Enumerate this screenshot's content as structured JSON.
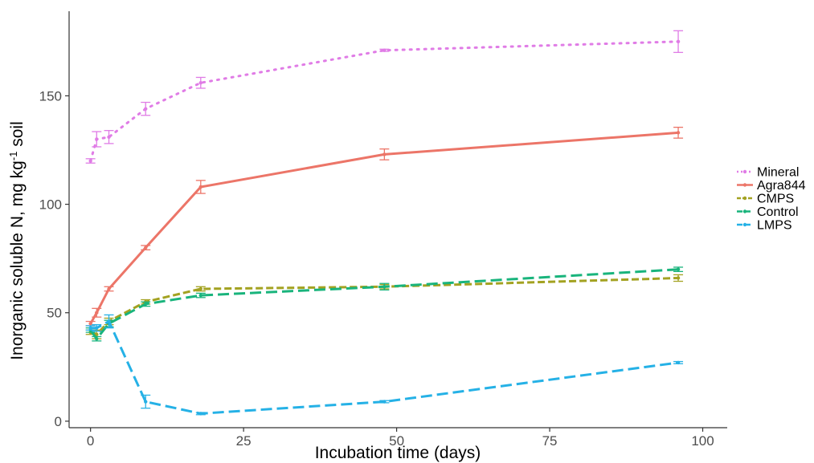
{
  "chart_data": {
    "type": "line",
    "xlabel": "Incubation time (days)",
    "ylabel_parts": [
      "Inorganic soluble N, mg kg",
      "-1",
      " soil"
    ],
    "xlim": [
      -3.5,
      104
    ],
    "ylim": [
      -3,
      189
    ],
    "x_ticks": [
      0,
      25,
      50,
      75,
      100
    ],
    "y_ticks": [
      0,
      50,
      100,
      150
    ],
    "grid": false,
    "legend_position": "right",
    "series": [
      {
        "name": "Mineral",
        "color": "#e07ce6",
        "dash": "2 7",
        "width": 3,
        "points": [
          {
            "x": 0,
            "y": 120,
            "err": 1.0
          },
          {
            "x": 1,
            "y": 130,
            "err": 3.5
          },
          {
            "x": 3,
            "y": 131,
            "err": 3.0
          },
          {
            "x": 9,
            "y": 144,
            "err": 3.0
          },
          {
            "x": 18,
            "y": 156,
            "err": 2.5
          },
          {
            "x": 48,
            "y": 171,
            "err": 0.5
          },
          {
            "x": 96,
            "y": 175,
            "err": 5.0
          }
        ]
      },
      {
        "name": "Agra844",
        "color": "#ec7568",
        "dash": "",
        "width": 3,
        "points": [
          {
            "x": 0,
            "y": 45,
            "err": 1.0
          },
          {
            "x": 1,
            "y": 50,
            "err": 2.0
          },
          {
            "x": 3,
            "y": 61,
            "err": 1.0
          },
          {
            "x": 9,
            "y": 80,
            "err": 1.0
          },
          {
            "x": 18,
            "y": 108,
            "err": 3.0
          },
          {
            "x": 48,
            "y": 123,
            "err": 2.5
          },
          {
            "x": 96,
            "y": 133,
            "err": 2.5
          }
        ]
      },
      {
        "name": "CMPS",
        "color": "#a3a221",
        "dash": "9 4",
        "width": 3,
        "points": [
          {
            "x": 0,
            "y": 41,
            "err": 1.0
          },
          {
            "x": 1,
            "y": 40,
            "err": 2.0
          },
          {
            "x": 3,
            "y": 46,
            "err": 1.5
          },
          {
            "x": 9,
            "y": 55,
            "err": 1.0
          },
          {
            "x": 18,
            "y": 61,
            "err": 1.0
          },
          {
            "x": 48,
            "y": 62,
            "err": 1.0
          },
          {
            "x": 96,
            "y": 66,
            "err": 1.5
          }
        ]
      },
      {
        "name": "Control",
        "color": "#19b47c",
        "dash": "14 6",
        "width": 3,
        "points": [
          {
            "x": 0,
            "y": 42,
            "err": 1.0
          },
          {
            "x": 1,
            "y": 38,
            "err": 1.0
          },
          {
            "x": 3,
            "y": 45,
            "err": 1.5
          },
          {
            "x": 9,
            "y": 54,
            "err": 1.0
          },
          {
            "x": 18,
            "y": 58,
            "err": 1.0
          },
          {
            "x": 48,
            "y": 62,
            "err": 1.5
          },
          {
            "x": 96,
            "y": 70,
            "err": 1.0
          }
        ]
      },
      {
        "name": "LMPS",
        "color": "#25b1e6",
        "dash": "14 6",
        "width": 3,
        "points": [
          {
            "x": 0,
            "y": 43,
            "err": 1.0
          },
          {
            "x": 1,
            "y": 43,
            "err": 1.5
          },
          {
            "x": 3,
            "y": 46,
            "err": 3.0
          },
          {
            "x": 9,
            "y": 9,
            "err": 3.0
          },
          {
            "x": 18,
            "y": 3.5,
            "err": 0.5
          },
          {
            "x": 48,
            "y": 9,
            "err": 0.5
          },
          {
            "x": 96,
            "y": 27,
            "err": 0.5
          }
        ]
      }
    ]
  }
}
